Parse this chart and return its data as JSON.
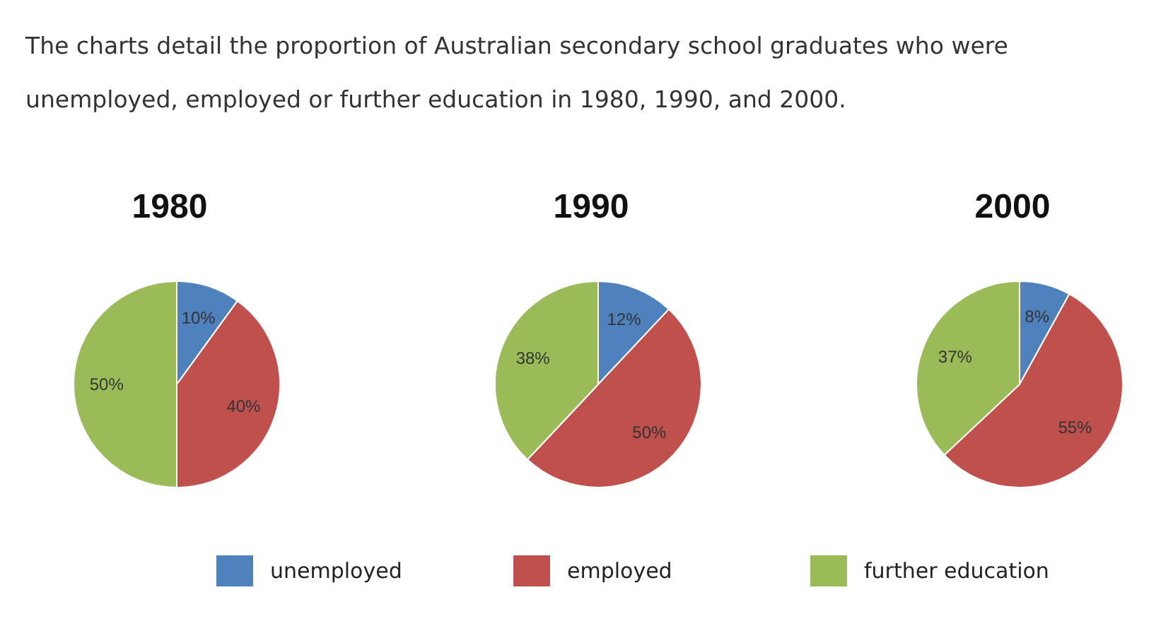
{
  "chart_data": [
    {
      "type": "pie",
      "title": "1980",
      "annotations": [
        "The charts detail the proportion of Australian secondary school graduates who were unemployed, employed or further education in 1980, 1990, and 2000."
      ],
      "categories": [
        null,
        null,
        null
      ],
      "values": [
        10,
        40,
        50
      ],
      "value_labels": [
        "10%",
        "40%",
        "50%"
      ],
      "colors": [
        "#4f81bd",
        "#c0504d",
        "#9bbb59"
      ]
    },
    {
      "type": "pie",
      "title": "1990",
      "categories": [
        "unemployed",
        "employed",
        "further education"
      ],
      "values": [
        12,
        50,
        38
      ],
      "value_labels": [
        "12%",
        "50%",
        "38%"
      ],
      "colors": [
        "#4f81bd",
        "#c0504d",
        "#9bbb59"
      ],
      "legend": "bottom"
    },
    {
      "type": "pie",
      "title": "2000",
      "categories": [
        null,
        null,
        null
      ],
      "values": [
        8,
        55,
        37
      ],
      "value_labels": [
        "8%",
        "55%",
        "37%"
      ],
      "colors": [
        "#4f81bd",
        "#c0504d",
        "#9bbb59"
      ]
    }
  ]
}
